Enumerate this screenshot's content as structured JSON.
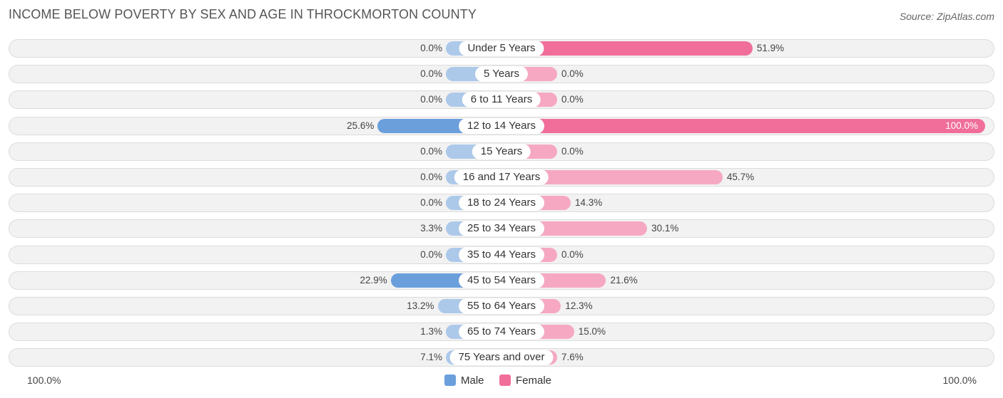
{
  "chart_data": {
    "type": "bar",
    "orientation": "horizontal-diverging",
    "title": "INCOME BELOW POVERTY BY SEX AND AGE IN THROCKMORTON COUNTY",
    "source": "Source: ZipAtlas.com",
    "categories": [
      "Under 5 Years",
      "5 Years",
      "6 to 11 Years",
      "12 to 14 Years",
      "15 Years",
      "16 and 17 Years",
      "18 to 24 Years",
      "25 to 34 Years",
      "35 to 44 Years",
      "45 to 54 Years",
      "55 to 64 Years",
      "65 to 74 Years",
      "75 Years and over"
    ],
    "series": [
      {
        "name": "Male",
        "color": "#6a9fdc",
        "light_color": "#adc9ea",
        "values": [
          0.0,
          0.0,
          0.0,
          25.6,
          0.0,
          0.0,
          0.0,
          3.3,
          0.0,
          22.9,
          13.2,
          1.3,
          7.1
        ],
        "labels": [
          "0.0%",
          "0.0%",
          "0.0%",
          "25.6%",
          "0.0%",
          "0.0%",
          "0.0%",
          "3.3%",
          "0.0%",
          "22.9%",
          "13.2%",
          "1.3%",
          "7.1%"
        ]
      },
      {
        "name": "Female",
        "color": "#f06e99",
        "light_color": "#f6a8c2",
        "values": [
          51.9,
          0.0,
          0.0,
          100.0,
          0.0,
          45.7,
          14.3,
          30.1,
          0.0,
          21.6,
          12.3,
          15.0,
          7.6
        ],
        "labels": [
          "51.9%",
          "0.0%",
          "0.0%",
          "100.0%",
          "0.0%",
          "45.7%",
          "14.3%",
          "30.1%",
          "0.0%",
          "21.6%",
          "12.3%",
          "15.0%",
          "7.6%"
        ]
      }
    ],
    "xlim": [
      0,
      100
    ],
    "axis_left_label": "100.0%",
    "axis_right_label": "100.0%",
    "legend_position": "bottom-center"
  }
}
